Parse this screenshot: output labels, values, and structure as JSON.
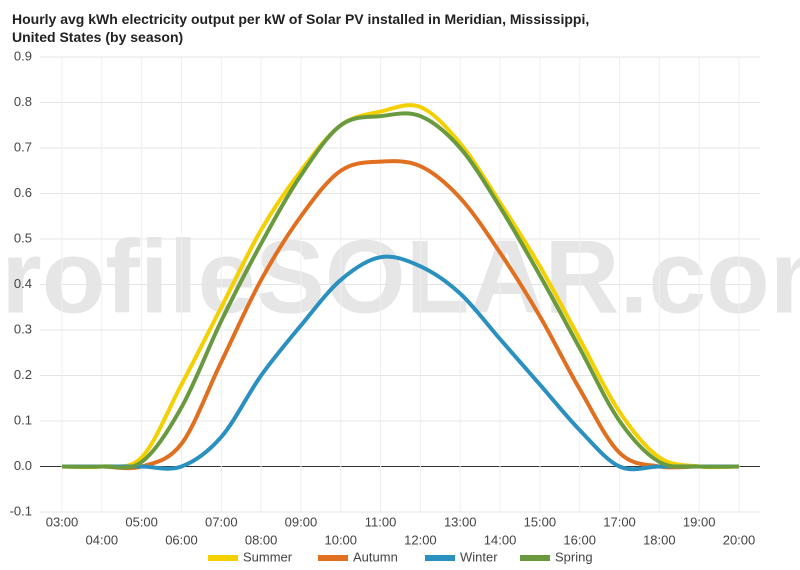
{
  "chart_data": {
    "type": "line",
    "title": "Hourly avg kWh electricity output per kW of Solar PV installed in Meridian, Mississippi, United States (by season)",
    "watermark": "profileSOLAR.com",
    "categories": [
      "03:00",
      "04:00",
      "05:00",
      "06:00",
      "07:00",
      "08:00",
      "09:00",
      "10:00",
      "11:00",
      "12:00",
      "13:00",
      "14:00",
      "15:00",
      "16:00",
      "17:00",
      "18:00",
      "19:00",
      "20:00"
    ],
    "series": [
      {
        "name": "Summer",
        "color": "#f5d000",
        "values": [
          0,
          0,
          0.02,
          0.18,
          0.35,
          0.52,
          0.65,
          0.75,
          0.78,
          0.79,
          0.71,
          0.58,
          0.44,
          0.28,
          0.12,
          0.02,
          0,
          0
        ]
      },
      {
        "name": "Autumn",
        "color": "#e07020",
        "values": [
          0,
          0,
          0,
          0.05,
          0.23,
          0.41,
          0.55,
          0.65,
          0.67,
          0.66,
          0.59,
          0.47,
          0.33,
          0.17,
          0.03,
          0,
          0,
          0
        ]
      },
      {
        "name": "Winter",
        "color": "#2a90bf",
        "values": [
          0,
          0,
          0,
          0,
          0.065,
          0.2,
          0.31,
          0.41,
          0.46,
          0.44,
          0.38,
          0.28,
          0.18,
          0.08,
          0,
          0,
          0,
          0
        ]
      },
      {
        "name": "Spring",
        "color": "#6a9a40",
        "values": [
          0,
          0,
          0.01,
          0.13,
          0.32,
          0.49,
          0.64,
          0.75,
          0.77,
          0.77,
          0.7,
          0.57,
          0.42,
          0.26,
          0.1,
          0.01,
          0,
          0
        ]
      }
    ],
    "ylim": [
      -0.1,
      0.9
    ],
    "yticks": [
      -0.1,
      {
        "value": 0,
        "label": "0.0"
      },
      0.1,
      0.2,
      0.3,
      0.4,
      0.5,
      0.6,
      0.7,
      0.8,
      0.9
    ],
    "grid": true
  }
}
